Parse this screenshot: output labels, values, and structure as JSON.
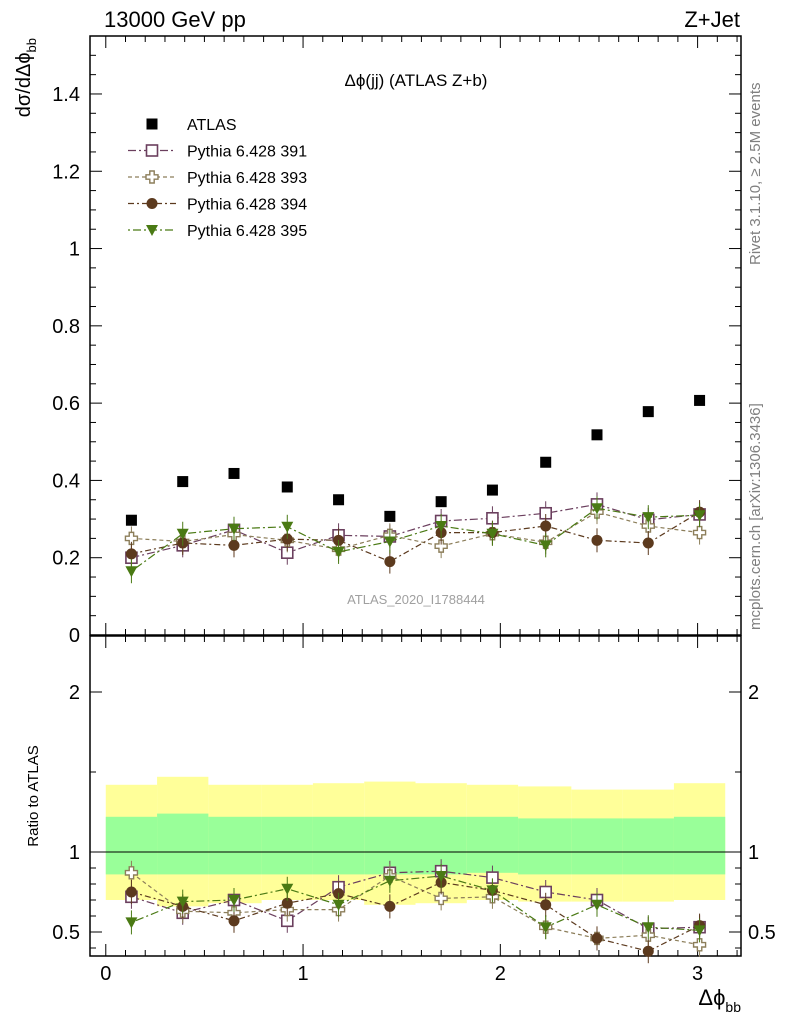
{
  "header": {
    "left": "13000 GeV pp",
    "right": "Z+Jet"
  },
  "side_labels": {
    "rivet": "Rivet 3.1.10, ≥ 2.5M events",
    "mcplots": "mcplots.cern.ch [arXiv:1306.3436]"
  },
  "watermark": "ATLAS_2020_I1788444",
  "colors": {
    "atlas": "#000000",
    "p391": "#6b3f5e",
    "p393": "#8c7e5a",
    "p394": "#5c3a1e",
    "p395": "#4a7a14",
    "band_inner": "#99ff99",
    "band_outer": "#ffff99"
  },
  "chart_data": [
    {
      "type": "scatter",
      "title": "Δϕ(jj) (ATLAS Z+b)",
      "ylabel": "dσ/dΔϕbb",
      "xlabel": "Δϕbb",
      "xlim": [
        -0.08,
        3.22
      ],
      "ylim": [
        0,
        1.55
      ],
      "yticks": [
        "0",
        "0.2",
        "0.4",
        "0.6",
        "0.8",
        "1",
        "1.2",
        "1.4"
      ],
      "legend_position": "top-left",
      "x": [
        0.13,
        0.39,
        0.65,
        0.92,
        1.18,
        1.44,
        1.7,
        1.96,
        2.23,
        2.49,
        2.75,
        3.01
      ],
      "series": [
        {
          "name": "ATLAS",
          "marker": "square-filled",
          "color": "#000000",
          "values": [
            0.297,
            0.397,
            0.418,
            0.383,
            0.35,
            0.307,
            0.345,
            0.375,
            0.447,
            0.518,
            0.578,
            0.607
          ]
        },
        {
          "name": "Pythia 6.428 391",
          "marker": "square-open",
          "color": "#6b3f5e",
          "values": [
            0.2,
            0.232,
            0.272,
            0.213,
            0.258,
            0.255,
            0.295,
            0.302,
            0.315,
            0.338,
            0.298,
            0.312
          ]
        },
        {
          "name": "Pythia 6.428 393",
          "marker": "cross-open",
          "color": "#8c7e5a",
          "values": [
            0.25,
            0.242,
            0.26,
            0.245,
            0.222,
            0.258,
            0.23,
            0.262,
            0.24,
            0.318,
            0.282,
            0.265
          ]
        },
        {
          "name": "Pythia 6.428 394",
          "marker": "circle-filled",
          "color": "#5c3a1e",
          "values": [
            0.21,
            0.238,
            0.232,
            0.248,
            0.245,
            0.19,
            0.265,
            0.265,
            0.282,
            0.245,
            0.238,
            0.318
          ]
        },
        {
          "name": "Pythia 6.428 395",
          "marker": "triangle-down",
          "color": "#4a7a14",
          "values": [
            0.165,
            0.262,
            0.275,
            0.28,
            0.215,
            0.242,
            0.282,
            0.262,
            0.232,
            0.328,
            0.305,
            0.31
          ]
        }
      ]
    },
    {
      "type": "scatter",
      "ylabel": "Ratio to ATLAS",
      "xlabel": "Δϕbb",
      "xlim": [
        -0.08,
        3.22
      ],
      "ylim": [
        0.35,
        2.35
      ],
      "yticks": [
        "0.5",
        "1",
        "2"
      ],
      "xticks": [
        "0",
        "1",
        "2",
        "3"
      ],
      "reference_line": 1,
      "bins": [
        [
          0.0,
          0.26
        ],
        [
          0.26,
          0.52
        ],
        [
          0.52,
          0.79
        ],
        [
          0.79,
          1.05
        ],
        [
          1.05,
          1.31
        ],
        [
          1.31,
          1.57
        ],
        [
          1.57,
          1.83
        ],
        [
          1.83,
          2.09
        ],
        [
          2.09,
          2.36
        ],
        [
          2.36,
          2.62
        ],
        [
          2.62,
          2.88
        ],
        [
          2.88,
          3.14
        ]
      ],
      "band_inner": [
        [
          0.86,
          1.22
        ],
        [
          0.86,
          1.24
        ],
        [
          0.86,
          1.22
        ],
        [
          0.86,
          1.22
        ],
        [
          0.86,
          1.22
        ],
        [
          0.86,
          1.22
        ],
        [
          0.86,
          1.22
        ],
        [
          0.87,
          1.22
        ],
        [
          0.86,
          1.21
        ],
        [
          0.86,
          1.21
        ],
        [
          0.86,
          1.21
        ],
        [
          0.86,
          1.22
        ]
      ],
      "band_outer": [
        [
          0.7,
          1.42
        ],
        [
          0.66,
          1.47
        ],
        [
          0.68,
          1.42
        ],
        [
          0.7,
          1.42
        ],
        [
          0.7,
          1.43
        ],
        [
          0.67,
          1.44
        ],
        [
          0.68,
          1.43
        ],
        [
          0.7,
          1.42
        ],
        [
          0.69,
          1.41
        ],
        [
          0.69,
          1.39
        ],
        [
          0.69,
          1.39
        ],
        [
          0.7,
          1.43
        ]
      ],
      "series": [
        {
          "name": "Pythia 6.428 391",
          "marker": "square-open",
          "color": "#6b3f5e",
          "values": [
            0.72,
            0.62,
            0.7,
            0.57,
            0.78,
            0.87,
            0.88,
            0.84,
            0.75,
            0.7,
            0.52,
            0.53
          ]
        },
        {
          "name": "Pythia 6.428 393",
          "marker": "cross-open",
          "color": "#8c7e5a",
          "values": [
            0.87,
            0.63,
            0.62,
            0.64,
            0.64,
            0.85,
            0.71,
            0.72,
            0.53,
            0.46,
            0.48,
            0.42
          ]
        },
        {
          "name": "Pythia 6.428 394",
          "marker": "circle-filled",
          "color": "#5c3a1e",
          "values": [
            0.75,
            0.66,
            0.57,
            0.68,
            0.74,
            0.66,
            0.81,
            0.76,
            0.67,
            0.46,
            0.38,
            0.54
          ]
        },
        {
          "name": "Pythia 6.428 395",
          "marker": "triangle-down",
          "color": "#4a7a14",
          "values": [
            0.56,
            0.69,
            0.7,
            0.77,
            0.67,
            0.82,
            0.85,
            0.76,
            0.53,
            0.67,
            0.53,
            0.51
          ]
        }
      ]
    }
  ]
}
